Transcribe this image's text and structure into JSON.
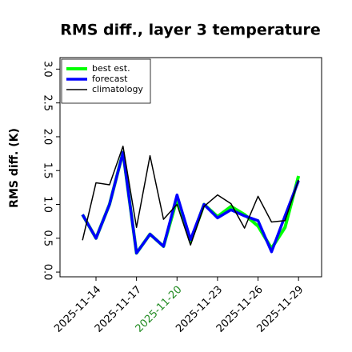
{
  "chart_data": {
    "type": "line",
    "title": "RMS diff., layer 3 temperature",
    "y_label": "RMS diff. (K)",
    "x": [
      "2025-11-13",
      "2025-11-14",
      "2025-11-15",
      "2025-11-16",
      "2025-11-17",
      "2025-11-18",
      "2025-11-19",
      "2025-11-20",
      "2025-11-21",
      "2025-11-22",
      "2025-11-23",
      "2025-11-24",
      "2025-11-25",
      "2025-11-26",
      "2025-11-27",
      "2025-11-28",
      "2025-11-29"
    ],
    "series": [
      {
        "name": "best est.",
        "color": "#00ff00",
        "width": 4,
        "values": [
          0.85,
          0.5,
          1.0,
          1.77,
          0.28,
          0.56,
          0.38,
          1.08,
          0.45,
          1.0,
          0.82,
          0.97,
          0.85,
          0.68,
          0.35,
          0.66,
          1.42
        ]
      },
      {
        "name": "forecast",
        "color": "#0000ff",
        "width": 3.5,
        "values": [
          0.85,
          0.5,
          1.0,
          1.77,
          0.28,
          0.56,
          0.38,
          1.14,
          0.48,
          1.0,
          0.8,
          0.92,
          0.83,
          0.76,
          0.3,
          0.83,
          1.35
        ]
      },
      {
        "name": "climatology",
        "color": "#000000",
        "width": 1.5,
        "values": [
          0.47,
          1.32,
          1.29,
          1.86,
          0.66,
          1.72,
          0.78,
          1.0,
          0.4,
          0.97,
          1.14,
          1.01,
          0.65,
          1.12,
          0.74,
          0.76,
          1.36
        ]
      }
    ],
    "xlim": [
      "2025-11-11T08:00",
      "2025-11-30T17:00"
    ],
    "xticks": [
      "2025-11-14",
      "2025-11-17",
      "2025-11-20",
      "2025-11-23",
      "2025-11-26",
      "2025-11-29"
    ],
    "xtick_label_colors": [
      "#000000",
      "#000000",
      "#228b22",
      "#000000",
      "#000000",
      "#000000"
    ],
    "ylim": [
      -0.07,
      3.17
    ],
    "yticks": [
      {
        "value": 0,
        "label": "0.0"
      },
      {
        "value": 0.5,
        "label": "0.5"
      },
      {
        "value": 1,
        "label": "1.0"
      },
      {
        "value": 1.5,
        "label": "1.5"
      },
      {
        "value": 2,
        "label": "2.0"
      },
      {
        "value": 2.5,
        "label": "2.5"
      },
      {
        "value": 3,
        "label": "3.0"
      }
    ],
    "legend": "upper left"
  }
}
